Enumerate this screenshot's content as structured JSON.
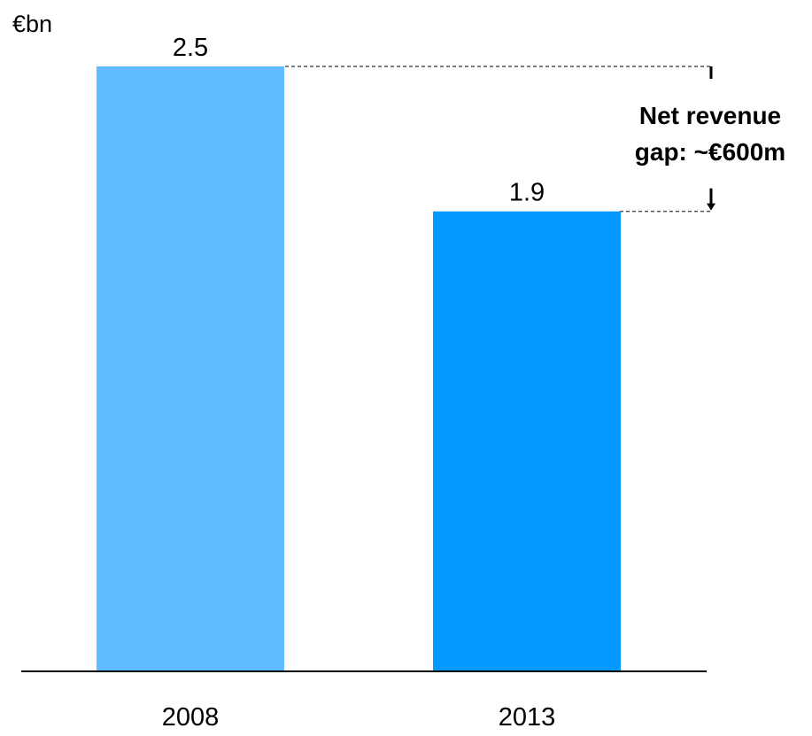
{
  "chart_data": {
    "type": "bar",
    "unit_label": "€bn",
    "categories": [
      "2008",
      "2013"
    ],
    "values": [
      2.5,
      1.9
    ],
    "value_labels": [
      "2.5",
      "1.9"
    ],
    "colors": [
      "#5ebcff",
      "#0399ff"
    ],
    "ylim": [
      0,
      2.5
    ],
    "grid": false,
    "legend": "none",
    "annotation": {
      "lines": [
        "Net revenue",
        "gap: ~€600m"
      ],
      "from_value": 2.5,
      "to_value": 1.9
    }
  }
}
